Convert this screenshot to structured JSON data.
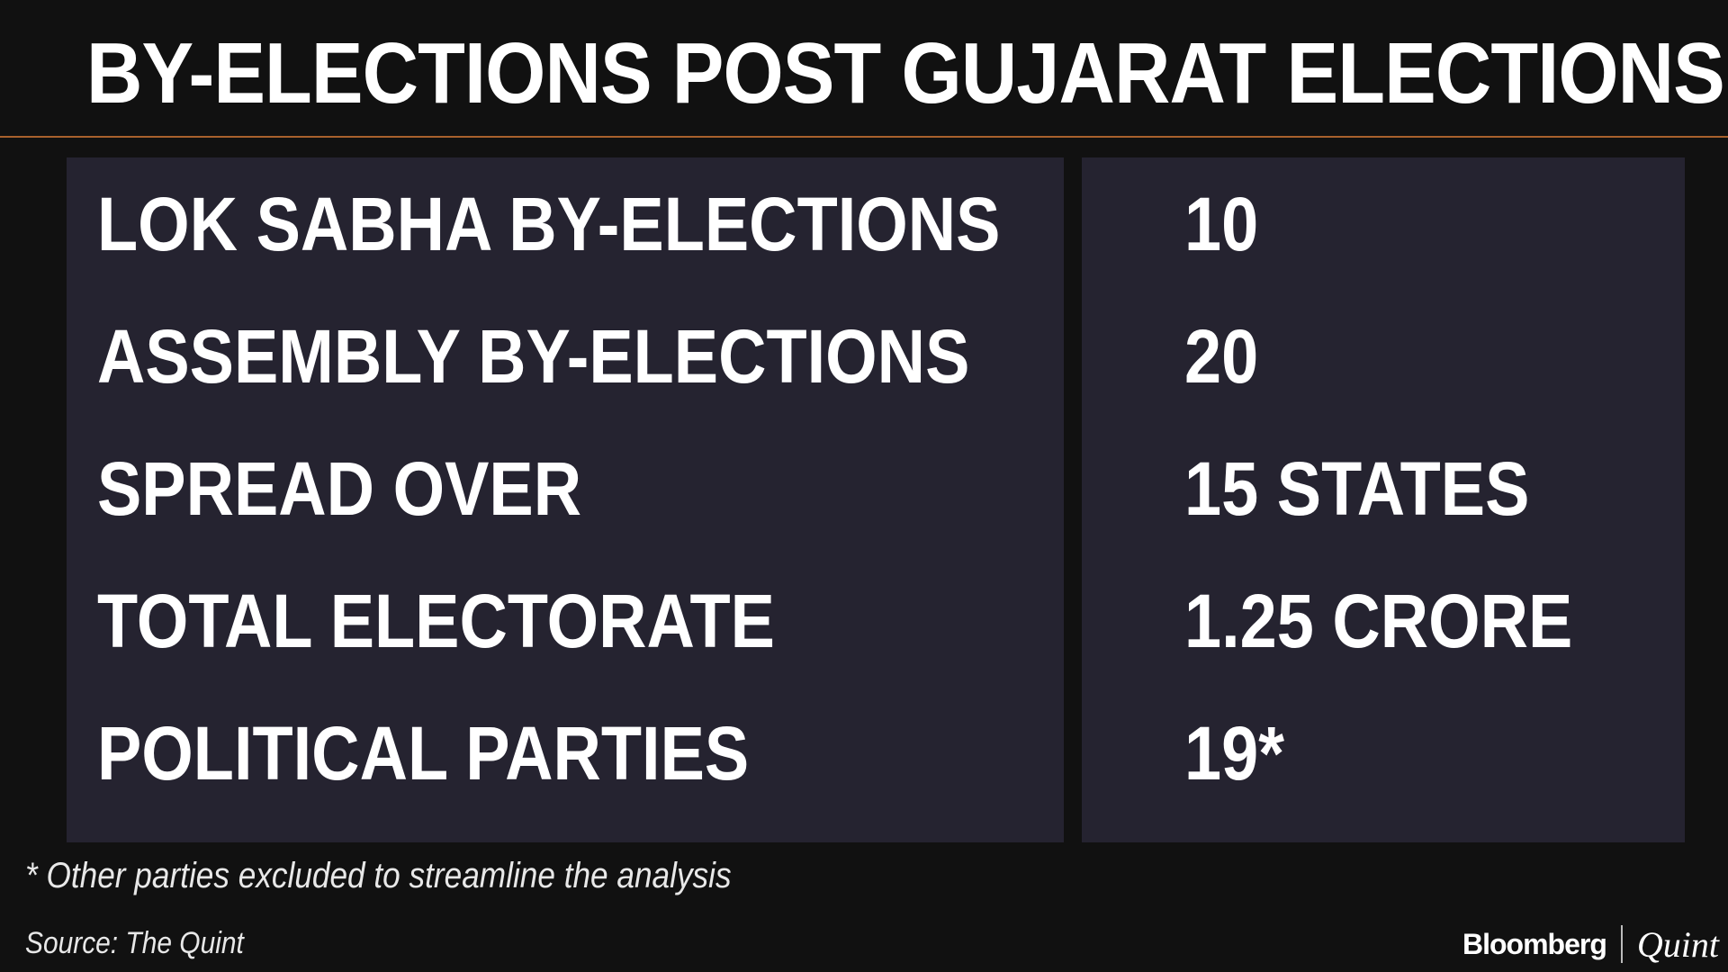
{
  "title": "BY-ELECTIONS POST GUJARAT ELECTIONS",
  "rows": [
    {
      "label": "LOK SABHA BY-ELECTIONS",
      "value": "10"
    },
    {
      "label": "ASSEMBLY BY-ELECTIONS",
      "value": "20"
    },
    {
      "label": "SPREAD OVER",
      "value": "15 STATES"
    },
    {
      "label": "TOTAL ELECTORATE",
      "value": "1.25 CRORE"
    },
    {
      "label": "POLITICAL PARTIES",
      "value": "19*"
    }
  ],
  "footnote": "* Other parties excluded to streamline the analysis",
  "source": "Source: The Quint",
  "logo": {
    "primary": "Bloomberg",
    "secondary": "Quint"
  },
  "colors": {
    "background": "#111111",
    "panel": "#252330",
    "rule": "#a8602c",
    "text": "#ffffff"
  }
}
